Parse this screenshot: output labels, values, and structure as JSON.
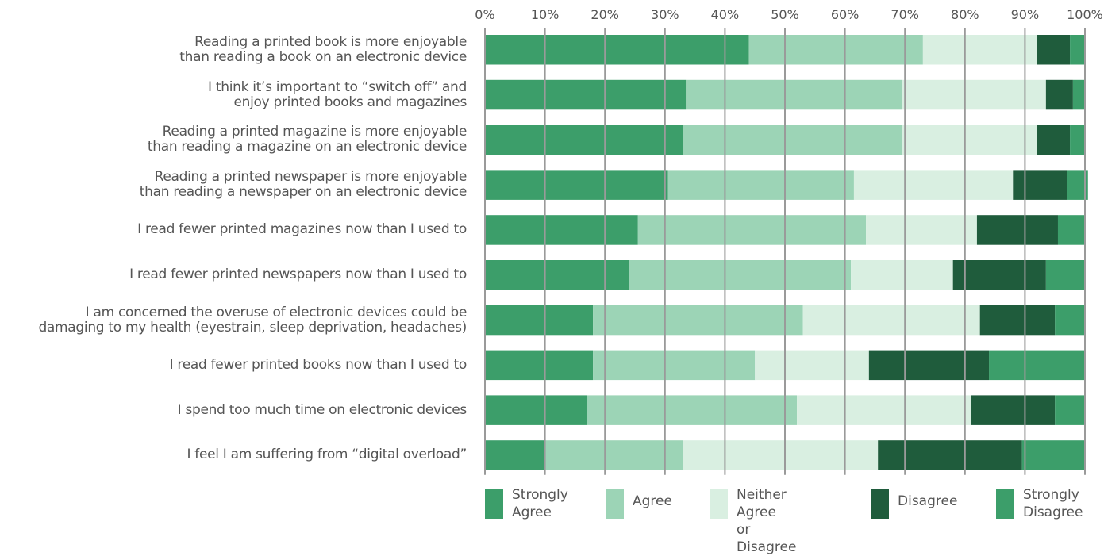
{
  "chart_data": {
    "type": "bar",
    "orientation": "horizontal",
    "stacked": true,
    "xlim": [
      0,
      100
    ],
    "x_ticks": [
      "0%",
      "10%",
      "20%",
      "30%",
      "40%",
      "50%",
      "60%",
      "70%",
      "80%",
      "90%",
      "100%"
    ],
    "grid": "vertical",
    "legend_position": "bottom",
    "categories": [
      [
        "Reading a printed book is more enjoyable",
        "than reading a book on an electronic device"
      ],
      [
        "I think it’s important to “switch off” and",
        "enjoy printed books and magazines"
      ],
      [
        "Reading a printed magazine is more enjoyable",
        "than reading a magazine on an electronic device"
      ],
      [
        "Reading a printed newspaper is more enjoyable",
        "than reading a newspaper on an electronic device"
      ],
      [
        "I read fewer printed magazines now than I used to"
      ],
      [
        "I read fewer printed newspapers now than I used to"
      ],
      [
        "I am concerned the overuse of electronic devices could be",
        "damaging to my health (eyestrain, sleep deprivation, headaches)"
      ],
      [
        "I read fewer printed books now than I used to"
      ],
      [
        "I spend too much time on electronic devices"
      ],
      [
        "I feel I am suffering from “digital overload”"
      ]
    ],
    "series": [
      {
        "name": [
          "Strongly",
          "Agree"
        ],
        "color": "#3c9e6a",
        "values": [
          44,
          33.5,
          33,
          30.5,
          25.5,
          24,
          18,
          18,
          17,
          10
        ]
      },
      {
        "name": [
          "Agree"
        ],
        "color": "#9cd4b6",
        "values": [
          29,
          36,
          36.5,
          31,
          38,
          37,
          35,
          27,
          35,
          23
        ]
      },
      {
        "name": [
          "Neither Agree",
          "or Disagree"
        ],
        "color": "#d9efe1",
        "values": [
          19,
          24,
          22.5,
          26.5,
          18.5,
          17,
          29.5,
          19,
          29,
          32.5
        ]
      },
      {
        "name": [
          "Disagree"
        ],
        "color": "#1f5c3c",
        "values": [
          5.5,
          4.5,
          5.5,
          9,
          13.5,
          15.5,
          12.5,
          20,
          14,
          24
        ]
      },
      {
        "name": [
          "Strongly",
          "Disagree"
        ],
        "color": "#3c9e6a",
        "values": [
          2.5,
          2,
          2.5,
          3.5,
          4.5,
          6.5,
          5,
          16,
          5,
          10.5
        ]
      }
    ]
  }
}
